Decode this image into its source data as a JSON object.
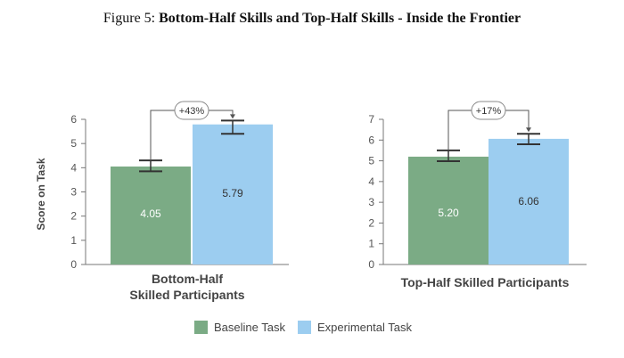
{
  "figure": {
    "prefix": "Figure 5: ",
    "title": "Bottom-Half Skills and Top-Half Skills - Inside the Frontier"
  },
  "legend": [
    {
      "name": "Baseline Task",
      "color": "#7bab85"
    },
    {
      "name": "Experimental Task",
      "color": "#9ccdf0"
    }
  ],
  "chart_data": [
    {
      "type": "bar",
      "ylabel": "Score on Task",
      "xlabel_lines": [
        "Bottom-Half",
        "Skilled Participants"
      ],
      "ylim": [
        0,
        6
      ],
      "yticks": [
        0,
        1,
        2,
        3,
        4,
        5,
        6
      ],
      "series": [
        {
          "name": "Baseline Task",
          "value": 4.05,
          "label": "4.05",
          "err": [
            3.85,
            4.3
          ]
        },
        {
          "name": "Experimental Task",
          "value": 5.79,
          "label": "5.79",
          "err": [
            5.4,
            5.95
          ]
        }
      ],
      "annotation": "+43%"
    },
    {
      "type": "bar",
      "ylabel": "",
      "xlabel_lines": [
        "Top-Half Skilled Participants"
      ],
      "ylim": [
        0,
        7
      ],
      "yticks": [
        0,
        1,
        2,
        3,
        4,
        5,
        6,
        7
      ],
      "series": [
        {
          "name": "Baseline Task",
          "value": 5.2,
          "label": "5.20",
          "err": [
            4.98,
            5.5
          ]
        },
        {
          "name": "Experimental Task",
          "value": 6.06,
          "label": "6.06",
          "err": [
            5.8,
            6.3
          ]
        }
      ],
      "annotation": "+17%"
    }
  ]
}
